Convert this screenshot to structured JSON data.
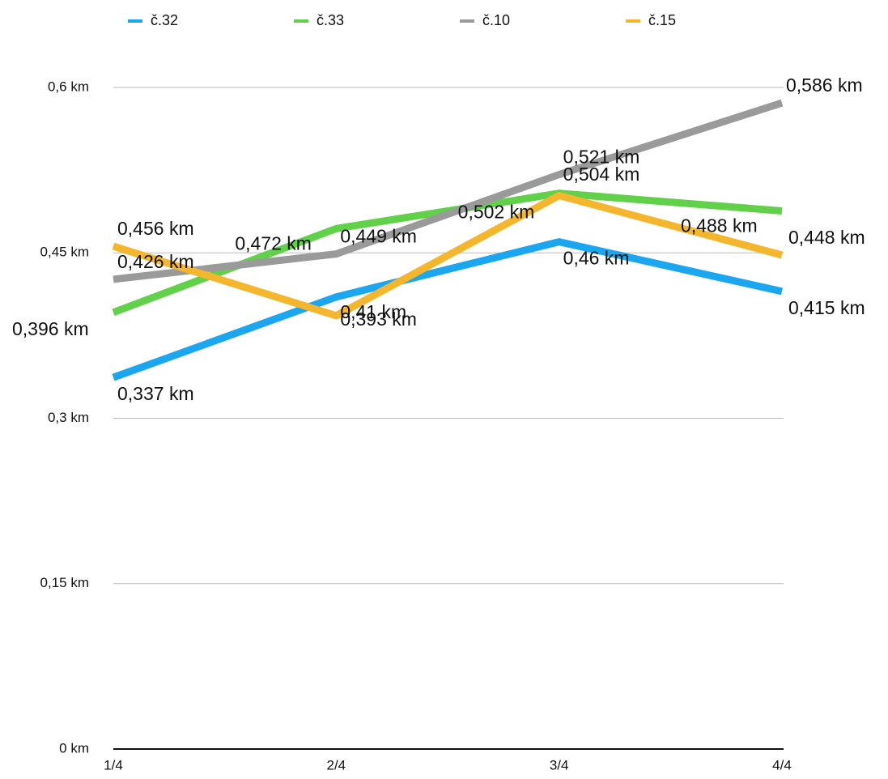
{
  "chart_data": {
    "type": "line",
    "categories": [
      "1/4",
      "2/4",
      "3/4",
      "4/4"
    ],
    "series": [
      {
        "name": "č.32",
        "color": "#1ba6f0",
        "values": [
          0.337,
          0.41,
          0.46,
          0.415
        ],
        "value_labels": [
          "0,337 km",
          "0,41 km",
          "0,46 km",
          "0,415 km"
        ]
      },
      {
        "name": "č.33",
        "color": "#61d14a",
        "values": [
          0.396,
          0.472,
          0.504,
          0.488
        ],
        "value_labels": [
          "0,396 km",
          "0,472 km",
          "0,504 km",
          "0,488 km"
        ]
      },
      {
        "name": "č.10",
        "color": "#9a9a9a",
        "values": [
          0.426,
          0.449,
          0.521,
          0.586
        ],
        "value_labels": [
          "0,426 km",
          "0,449 km",
          "0,521 km",
          "0,586 km"
        ]
      },
      {
        "name": "č.15",
        "color": "#f4b62c",
        "values": [
          0.456,
          0.393,
          0.502,
          0.448
        ],
        "value_labels": [
          "0,456 km",
          "0,393 km",
          "0,502 km",
          "0,448 km"
        ]
      }
    ],
    "ylim": [
      0,
      0.6
    ],
    "yticks": [
      {
        "value": 0,
        "label": "0 km"
      },
      {
        "value": 0.15,
        "label": "0,15 km"
      },
      {
        "value": 0.3,
        "label": "0,3 km"
      },
      {
        "value": 0.45,
        "label": "0,45 km"
      },
      {
        "value": 0.6,
        "label": "0,6 km"
      }
    ],
    "grid": true,
    "legend": "top"
  }
}
